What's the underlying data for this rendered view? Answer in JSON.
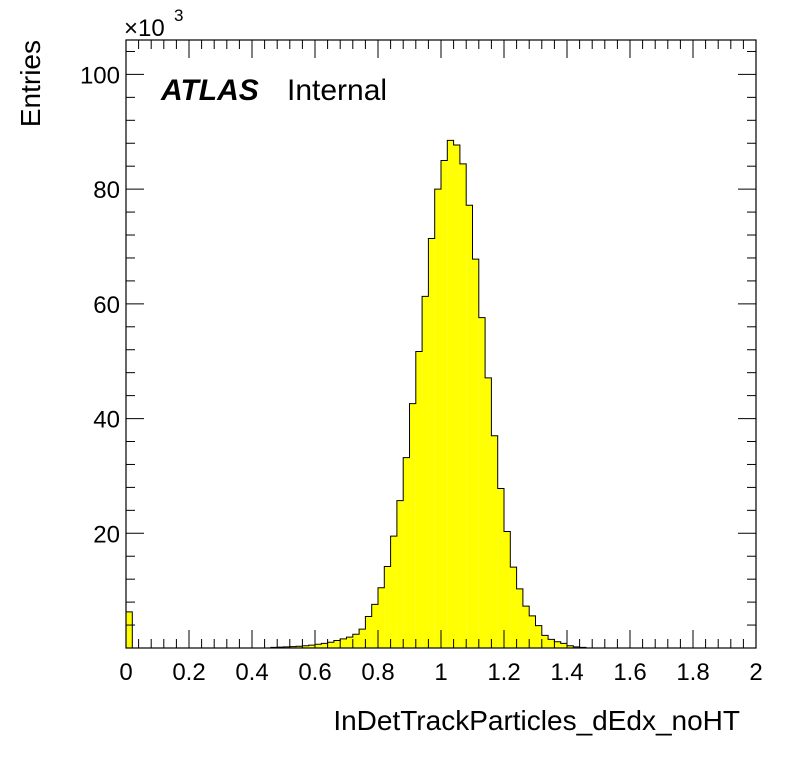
{
  "chart_data": {
    "type": "histogram",
    "xlabel": "InDetTrackParticles_dEdx_noHT",
    "ylabel": "Entries",
    "y_multiplier": "×10",
    "y_multiplier_exponent": "3",
    "label_bold": "ATLAS",
    "label_normal": "Internal",
    "xlim": [
      0,
      2
    ],
    "ylim": [
      0,
      106
    ],
    "x_ticks": [
      "0",
      "0.2",
      "0.4",
      "0.6",
      "0.8",
      "1",
      "1.2",
      "1.4",
      "1.6",
      "1.8",
      "2"
    ],
    "y_ticks": [
      "20",
      "40",
      "60",
      "80",
      "100"
    ],
    "bin_width": 0.02,
    "bins": [
      {
        "x": 0.0,
        "y": 6.3
      },
      {
        "x": 0.46,
        "y": 0.1
      },
      {
        "x": 0.48,
        "y": 0.15
      },
      {
        "x": 0.5,
        "y": 0.2
      },
      {
        "x": 0.52,
        "y": 0.25
      },
      {
        "x": 0.54,
        "y": 0.3
      },
      {
        "x": 0.56,
        "y": 0.4
      },
      {
        "x": 0.58,
        "y": 0.5
      },
      {
        "x": 0.6,
        "y": 0.65
      },
      {
        "x": 0.62,
        "y": 0.8
      },
      {
        "x": 0.64,
        "y": 1.0
      },
      {
        "x": 0.66,
        "y": 1.3
      },
      {
        "x": 0.68,
        "y": 1.6
      },
      {
        "x": 0.7,
        "y": 1.9
      },
      {
        "x": 0.72,
        "y": 2.4
      },
      {
        "x": 0.74,
        "y": 3.3
      },
      {
        "x": 0.76,
        "y": 5.5
      },
      {
        "x": 0.78,
        "y": 7.6
      },
      {
        "x": 0.8,
        "y": 10.5
      },
      {
        "x": 0.82,
        "y": 14.2
      },
      {
        "x": 0.84,
        "y": 19.5
      },
      {
        "x": 0.86,
        "y": 25.7
      },
      {
        "x": 0.88,
        "y": 33.2
      },
      {
        "x": 0.9,
        "y": 42.6
      },
      {
        "x": 0.92,
        "y": 51.7
      },
      {
        "x": 0.94,
        "y": 61.3
      },
      {
        "x": 0.96,
        "y": 71.4
      },
      {
        "x": 0.98,
        "y": 80.0
      },
      {
        "x": 1.0,
        "y": 85.0
      },
      {
        "x": 1.02,
        "y": 88.5
      },
      {
        "x": 1.04,
        "y": 87.7
      },
      {
        "x": 1.06,
        "y": 84.4
      },
      {
        "x": 1.08,
        "y": 77.2
      },
      {
        "x": 1.1,
        "y": 67.8
      },
      {
        "x": 1.12,
        "y": 57.6
      },
      {
        "x": 1.14,
        "y": 47.1
      },
      {
        "x": 1.16,
        "y": 37.0
      },
      {
        "x": 1.18,
        "y": 27.8
      },
      {
        "x": 1.2,
        "y": 20.3
      },
      {
        "x": 1.22,
        "y": 14.1
      },
      {
        "x": 1.24,
        "y": 10.3
      },
      {
        "x": 1.26,
        "y": 7.3
      },
      {
        "x": 1.28,
        "y": 5.6
      },
      {
        "x": 1.3,
        "y": 3.9
      },
      {
        "x": 1.32,
        "y": 2.2
      },
      {
        "x": 1.34,
        "y": 1.5
      },
      {
        "x": 1.36,
        "y": 1.1
      },
      {
        "x": 1.38,
        "y": 0.8
      },
      {
        "x": 1.4,
        "y": 0.4
      },
      {
        "x": 1.42,
        "y": 0.2
      },
      {
        "x": 1.44,
        "y": 0.1
      }
    ],
    "fill_color": "#ffff00",
    "line_color": "#000000"
  }
}
